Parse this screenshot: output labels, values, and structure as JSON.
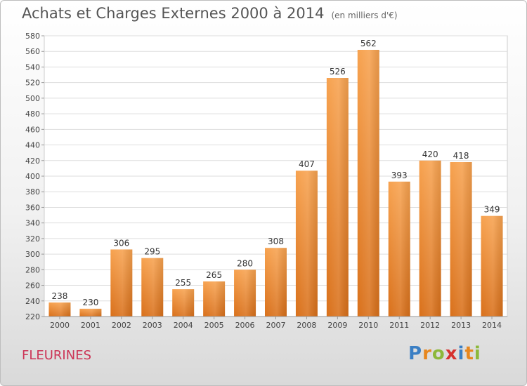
{
  "header": {
    "title": "Achats et Charges Externes 2000 à 2014",
    "unit": "(en milliers d'€)"
  },
  "footer": {
    "place": "FLEURINES",
    "logo": [
      "P",
      "r",
      "o",
      "x",
      "i",
      "t",
      "i"
    ]
  },
  "chart_data": {
    "type": "bar",
    "title": "Achats et Charges Externes 2000 à 2014",
    "subtitle": "(en milliers d'€)",
    "xlabel": "",
    "ylabel": "",
    "categories": [
      "2000",
      "2001",
      "2002",
      "2003",
      "2004",
      "2005",
      "2006",
      "2007",
      "2008",
      "2009",
      "2010",
      "2011",
      "2012",
      "2013",
      "2014"
    ],
    "values": [
      238,
      230,
      306,
      295,
      255,
      265,
      280,
      308,
      407,
      526,
      562,
      393,
      420,
      418,
      349
    ],
    "ylim": [
      220,
      580
    ],
    "yticks": [
      220,
      240,
      260,
      280,
      300,
      320,
      340,
      360,
      380,
      400,
      420,
      440,
      460,
      480,
      500,
      520,
      540,
      560,
      580
    ],
    "grid": true,
    "bar_color": "#f0903a"
  }
}
